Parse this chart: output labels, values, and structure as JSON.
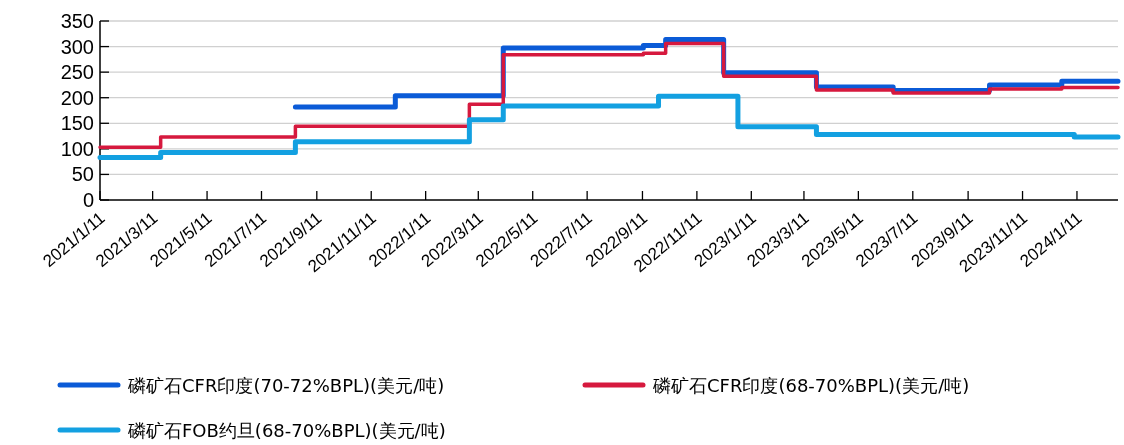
{
  "chart_data": {
    "type": "step",
    "legend": "bottom",
    "grid": "y",
    "line_style": "solid",
    "marker": "none",
    "xlim": [
      "2021-01-11",
      "2024-02-26"
    ],
    "xticks": [
      {
        "value": "2021-01-11",
        "label": "2021/1/11"
      },
      {
        "value": "2021-03-11",
        "label": "2021/3/11"
      },
      {
        "value": "2021-05-11",
        "label": "2021/5/11"
      },
      {
        "value": "2021-07-11",
        "label": "2021/7/11"
      },
      {
        "value": "2021-09-11",
        "label": "2021/9/11"
      },
      {
        "value": "2021-11-11",
        "label": "2021/11/11"
      },
      {
        "value": "2022-01-11",
        "label": "2022/1/11"
      },
      {
        "value": "2022-03-11",
        "label": "2022/3/11"
      },
      {
        "value": "2022-05-11",
        "label": "2022/5/11"
      },
      {
        "value": "2022-07-11",
        "label": "2022/7/11"
      },
      {
        "value": "2022-09-11",
        "label": "2022/9/11"
      },
      {
        "value": "2022-11-11",
        "label": "2022/11/11"
      },
      {
        "value": "2023-01-11",
        "label": "2023/1/11"
      },
      {
        "value": "2023-03-11",
        "label": "2023/3/11"
      },
      {
        "value": "2023-05-11",
        "label": "2023/5/11"
      },
      {
        "value": "2023-07-11",
        "label": "2023/7/11"
      },
      {
        "value": "2023-09-11",
        "label": "2023/9/11"
      },
      {
        "value": "2023-11-11",
        "label": "2023/11/11"
      },
      {
        "value": "2024-01-11",
        "label": "2024/1/11"
      }
    ],
    "ylim": [
      0,
      350
    ],
    "yticks": [
      0,
      50,
      100,
      150,
      200,
      250,
      300,
      350
    ],
    "series": [
      {
        "name": "磷矿石CFR印度(70-72%BPL)(美元/吨)",
        "color": "#0b5bd7",
        "x": [
          "2021-08-18",
          "2021-12-08",
          "2022-04-08",
          "2022-09-12",
          "2022-10-07",
          "2022-12-11",
          "2023-03-25",
          "2023-06-19",
          "2023-10-05",
          "2023-12-25",
          "2024-02-26"
        ],
        "values": [
          182,
          204,
          297,
          302,
          314,
          249,
          221,
          214,
          225,
          232,
          232
        ]
      },
      {
        "name": "磷矿石CFR印度(68-70%BPL)(美元/吨)",
        "color": "#d6193e",
        "x": [
          "2021-01-11",
          "2021-03-20",
          "2021-08-18",
          "2022-03-01",
          "2022-04-08",
          "2022-09-12",
          "2022-10-07",
          "2022-12-11",
          "2023-03-25",
          "2023-06-19",
          "2023-10-05",
          "2023-12-25",
          "2024-02-26"
        ],
        "values": [
          103,
          123,
          144,
          187,
          284,
          287,
          306,
          242,
          215,
          209,
          217,
          220,
          220
        ]
      },
      {
        "name": "磷矿石FOB约旦(68-70%BPL)(美元/吨)",
        "color": "#13a0e1",
        "x": [
          "2021-01-11",
          "2021-03-20",
          "2021-08-18",
          "2022-03-01",
          "2022-04-08",
          "2022-09-29",
          "2022-12-27",
          "2023-03-25",
          "2024-01-08",
          "2024-02-26"
        ],
        "values": [
          83,
          93,
          114,
          157,
          184,
          203,
          143,
          128,
          123,
          123
        ]
      }
    ]
  }
}
